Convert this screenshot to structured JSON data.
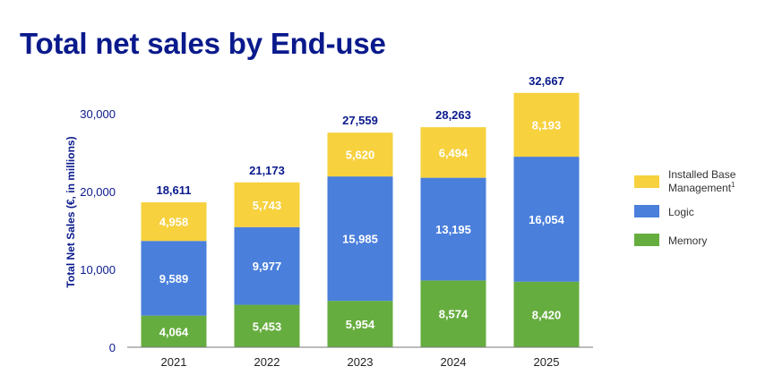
{
  "page": {
    "title": "Total net sales by End-use"
  },
  "chart_data": {
    "type": "bar",
    "stacked": true,
    "categories": [
      "2021",
      "2022",
      "2023",
      "2024",
      "2025"
    ],
    "series": [
      {
        "name": "Memory",
        "color": "#66ad3f",
        "values": [
          4064,
          5453,
          5954,
          8574,
          8420
        ]
      },
      {
        "name": "Logic",
        "color": "#4a7fdb",
        "values": [
          9589,
          9977,
          15985,
          13195,
          16054
        ]
      },
      {
        "name": "Installed Base Management",
        "superscript": "1",
        "color": "#f7d13e",
        "values": [
          4958,
          5743,
          5620,
          6494,
          8193
        ]
      }
    ],
    "totals": [
      18611,
      21173,
      27559,
      28263,
      32667
    ],
    "segment_labels": [
      [
        "4,064",
        "5,453",
        "5,954",
        "8,574",
        "8,420"
      ],
      [
        "9,589",
        "9,977",
        "15,985",
        "13,195",
        "16,054"
      ],
      [
        "4,958",
        "5,743",
        "5,620",
        "6,494",
        "8,193"
      ]
    ],
    "total_labels": [
      "18,611",
      "21,173",
      "27,559",
      "28,263",
      "32,667"
    ],
    "ylabel": "Total Net Sales (€, in millions)",
    "yticks": [
      0,
      10000,
      20000,
      30000
    ],
    "ytick_labels": [
      "0",
      "10,000",
      "20,000",
      "30,000"
    ],
    "ylim": [
      0,
      30000
    ],
    "legend": {
      "placement": "right",
      "entries": [
        {
          "label_line1": "Installed Base",
          "label_line2": "Management",
          "superscript": "1",
          "color": "#f7d13e"
        },
        {
          "label_line1": "Logic",
          "color": "#4a7fdb"
        },
        {
          "label_line1": "Memory",
          "color": "#66ad3f"
        }
      ]
    }
  }
}
